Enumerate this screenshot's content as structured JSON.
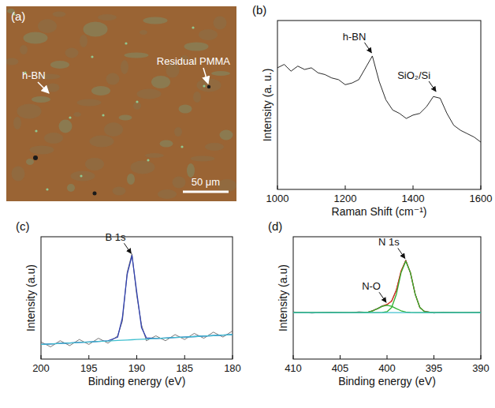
{
  "chart_data": [
    {
      "type": "image",
      "panel": "(a)",
      "annotations": [
        {
          "text": "h-BN"
        },
        {
          "text": "Residual PMMA"
        }
      ],
      "scale_bar": "50 μm"
    },
    {
      "type": "line",
      "panel": "(b)",
      "xlabel": "Raman Shift (cm⁻¹)",
      "ylabel": "Intensity (a. u.)",
      "x": [
        1000,
        1020,
        1040,
        1060,
        1080,
        1100,
        1120,
        1140,
        1160,
        1180,
        1200,
        1220,
        1240,
        1260,
        1280,
        1300,
        1320,
        1340,
        1360,
        1380,
        1400,
        1420,
        1440,
        1460,
        1480,
        1500,
        1520,
        1540,
        1560,
        1580,
        1600
      ],
      "series": [
        {
          "color": "#111111",
          "values": [
            72,
            74,
            70,
            73,
            71,
            72,
            69,
            68,
            66,
            65,
            62,
            63,
            65,
            72,
            79,
            64,
            53,
            47,
            45,
            42,
            44,
            45,
            49,
            55,
            54,
            45,
            38,
            35,
            33,
            31,
            28
          ]
        }
      ],
      "xlim": [
        1000,
        1600
      ],
      "xticks": [
        1000,
        1200,
        1400,
        1600
      ],
      "ylim": [
        0,
        100
      ],
      "tick_labels": "x",
      "annotations": [
        {
          "text": "h-BN",
          "x": 1280,
          "y": 80
        },
        {
          "text": "SiO₂/Si",
          "x": 1470,
          "y": 57
        }
      ]
    },
    {
      "type": "line",
      "panel": "(c)",
      "xlabel": "Binding energy (eV)",
      "ylabel": "Intensity (a.u)",
      "x": [
        200,
        199,
        198,
        197,
        196,
        195,
        194,
        193,
        192,
        191.5,
        191,
        190.5,
        190,
        189.5,
        189,
        188,
        187,
        186,
        185,
        184,
        183,
        182,
        181,
        180
      ],
      "series": [
        {
          "color": "#555555",
          "values": [
            14,
            10,
            15,
            11,
            16,
            12,
            17,
            13,
            19,
            31,
            71,
            86,
            52,
            28,
            15,
            19,
            15,
            20,
            16,
            21,
            17,
            22,
            18,
            23
          ]
        },
        {
          "color": "#3040b0",
          "values": [
            12,
            12.4,
            12.8,
            13.2,
            13.6,
            14,
            14.4,
            14.9,
            17.9,
            33.7,
            69.3,
            84.7,
            54.6,
            25.7,
            17.4,
            16.8,
            17.2,
            17.6,
            18,
            18.4,
            18.8,
            19.2,
            19.6,
            20
          ]
        },
        {
          "color": "#40c0d0",
          "values": [
            12,
            12.4,
            12.8,
            13.2,
            13.6,
            14,
            14.4,
            14.8,
            15.2,
            15.4,
            15.6,
            15.8,
            16,
            16.2,
            16.4,
            16.8,
            17.2,
            17.6,
            18,
            18.4,
            18.8,
            19.2,
            19.6,
            20
          ]
        }
      ],
      "xlim": [
        200,
        180
      ],
      "xticks": [
        200,
        195,
        190,
        185,
        180
      ],
      "ylim": [
        0,
        100
      ],
      "tick_labels": "x",
      "annotations": [
        {
          "text": "B 1s",
          "x": 190.5,
          "y": 85
        }
      ]
    },
    {
      "type": "line",
      "panel": "(d)",
      "xlabel": "Binding energy (eV)",
      "ylabel": "Intensity (a.u)",
      "x": [
        410,
        408,
        406,
        404,
        403,
        402,
        401.5,
        401,
        400.5,
        400,
        399.5,
        399,
        398.5,
        398,
        397.5,
        397,
        396.5,
        396,
        395,
        394,
        392,
        390
      ],
      "series": [
        {
          "color": "#222222",
          "values": [
            38.5,
            37.6,
            38.4,
            37.8,
            38.6,
            38.2,
            39.8,
            41.5,
            43.6,
            44.2,
            47.8,
            56.8,
            71.5,
            81,
            70,
            53.5,
            41.8,
            39.2,
            37.6,
            38.4,
            37.8,
            38.3
          ]
        },
        {
          "color": "#e03020",
          "values": [
            38,
            38,
            38,
            38,
            38,
            38.5,
            39.5,
            41.2,
            43.2,
            44.7,
            47.3,
            56.3,
            72.1,
            80.5,
            70.7,
            53.1,
            42.2,
            38.7,
            38,
            38,
            38,
            38
          ]
        },
        {
          "color": "#30b030",
          "values": [
            38,
            38,
            38,
            38,
            38,
            38,
            38,
            38,
            38.1,
            38.7,
            42.2,
            53.1,
            70.6,
            80,
            70.6,
            53.1,
            42.2,
            38.7,
            38,
            38,
            38,
            38
          ]
        },
        {
          "color": "#30b030",
          "values": [
            38,
            38,
            38,
            38,
            38,
            38.5,
            39.5,
            41.2,
            43.1,
            44,
            43.1,
            41.2,
            39.5,
            38.5,
            38.1,
            38,
            38,
            38,
            38,
            38,
            38,
            38
          ]
        },
        {
          "color": "#40c0d0",
          "values": [
            38,
            38,
            38,
            38,
            38,
            38,
            38,
            38,
            38,
            38,
            38,
            38,
            38,
            38,
            38,
            38,
            38,
            38,
            38,
            38,
            38,
            38
          ]
        }
      ],
      "xlim": [
        410,
        390
      ],
      "xticks": [
        410,
        405,
        400,
        395,
        390
      ],
      "ylim": [
        0,
        100
      ],
      "tick_labels": "x",
      "annotations": [
        {
          "text": "N 1s",
          "x": 398,
          "y": 81
        },
        {
          "text": "N-O",
          "x": 400,
          "y": 45
        }
      ]
    }
  ]
}
